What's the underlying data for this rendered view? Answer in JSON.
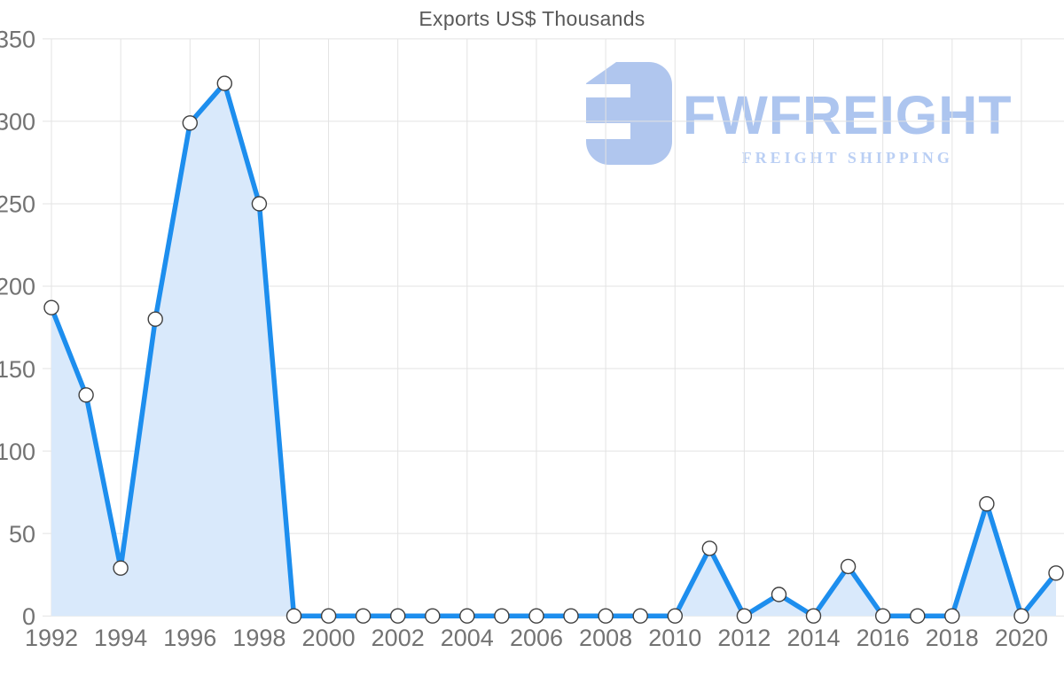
{
  "page": {
    "title": "Exports US$ Thousands"
  },
  "watermark": {
    "brand": "FWFREIGHT",
    "tagline": "FREIGHT SHIPPING",
    "mark_color": "#aac2ed",
    "brand_color": "#a7c1ee",
    "tagline_color": "#b5cbf4"
  },
  "chart_data": {
    "type": "area",
    "title": "Exports US$ Thousands",
    "series_name": "Exports US$ Thousands",
    "x": [
      1992,
      1993,
      1994,
      1995,
      1996,
      1997,
      1998,
      1999,
      2000,
      2001,
      2002,
      2003,
      2004,
      2005,
      2006,
      2007,
      2008,
      2009,
      2010,
      2011,
      2012,
      2013,
      2014,
      2015,
      2016,
      2017,
      2018,
      2019,
      2020,
      2021
    ],
    "values": [
      187,
      134,
      29,
      180,
      299,
      323,
      250,
      0,
      0,
      0,
      0,
      0,
      0,
      0,
      0,
      0,
      0,
      0,
      0,
      41,
      0,
      13,
      0,
      30,
      0,
      0,
      0,
      68,
      0,
      26
    ],
    "xlabel": "",
    "ylabel": "",
    "ylim": [
      0,
      350
    ],
    "xlim": [
      1992,
      2021
    ],
    "y_ticks": [
      0,
      50,
      100,
      150,
      200,
      250,
      300,
      350
    ],
    "x_tick_labels": [
      1992,
      1994,
      1996,
      1998,
      2000,
      2002,
      2004,
      2006,
      2008,
      2010,
      2012,
      2014,
      2016,
      2018,
      2020
    ],
    "grid": true,
    "legend": "none",
    "colors": {
      "line": "#1d8eee",
      "fill": "#d9e9fb",
      "marker_fill": "#ffffff",
      "marker_stroke": "#404040",
      "gridline": "#e3e3e3",
      "tick_label": "#737373"
    }
  }
}
